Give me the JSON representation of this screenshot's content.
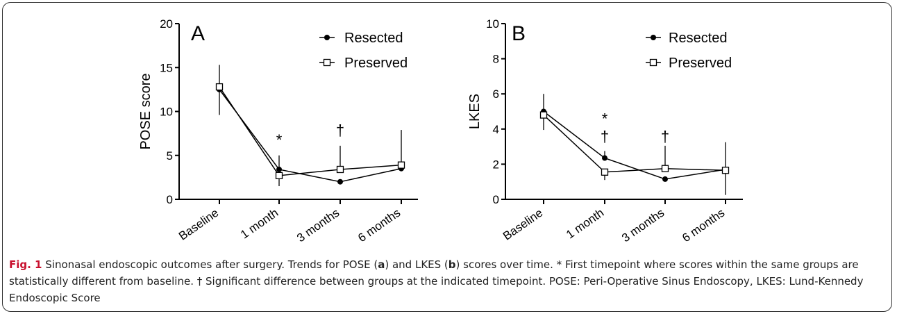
{
  "chart_data": [
    {
      "type": "line",
      "panel_letter": "A",
      "ylabel": "POSE score",
      "categories": [
        "Baseline",
        "1 month",
        "3 months",
        "6 months"
      ],
      "ylim": [
        0,
        20
      ],
      "yticks": [
        0,
        5,
        10,
        15,
        20
      ],
      "legend_position": "top-right",
      "series": [
        {
          "name": "Resected",
          "marker": "filled-circle",
          "values": [
            12.5,
            3.4,
            2.0,
            3.5
          ],
          "error_up": [
            null,
            1.6,
            null,
            null
          ]
        },
        {
          "name": "Preserved",
          "marker": "open-square",
          "values": [
            12.8,
            2.7,
            3.4,
            3.9
          ],
          "error_up": [
            2.5,
            null,
            2.7,
            4.0
          ]
        }
      ],
      "error_down": [
        {
          "category": "Baseline",
          "value": 9.6
        },
        {
          "category": "1 month",
          "value": 1.5
        }
      ],
      "annotations": [
        {
          "category": "1 month",
          "text": "*",
          "y": 6.8
        },
        {
          "category": "3 months",
          "text": "†",
          "y": 7.9
        }
      ]
    },
    {
      "type": "line",
      "panel_letter": "B",
      "ylabel": "LKES",
      "categories": [
        "Baseline",
        "1 month",
        "3 months",
        "6 months"
      ],
      "ylim": [
        0,
        10
      ],
      "yticks": [
        0,
        2,
        4,
        6,
        8,
        10
      ],
      "legend_position": "top-right",
      "series": [
        {
          "name": "Resected",
          "marker": "filled-circle",
          "values": [
            5.0,
            2.35,
            1.15,
            1.7
          ],
          "error_up": [
            1.0,
            0.4,
            null,
            1.55
          ]
        },
        {
          "name": "Preserved",
          "marker": "open-square",
          "values": [
            4.8,
            1.55,
            1.75,
            1.65
          ],
          "error_up": [
            null,
            null,
            1.3,
            null
          ]
        }
      ],
      "error_down": [
        {
          "category": "Baseline",
          "value": 3.95
        },
        {
          "category": "1 month",
          "value": 1.1
        },
        {
          "category": "6 months",
          "value": 0.25
        }
      ],
      "annotations": [
        {
          "category": "1 month",
          "text": "*",
          "y": 4.6
        },
        {
          "category": "1 month",
          "text": "†",
          "y": 3.6
        },
        {
          "category": "3 months",
          "text": "†",
          "y": 3.6
        }
      ]
    }
  ],
  "caption": {
    "fig_label": "Fig. 1",
    "text_1": " Sinonasal endoscopic outcomes after surgery. Trends for POSE (",
    "a": "a",
    "text_2": ") and LKES (",
    "b": "b",
    "text_3": ") scores over time. * First timepoint where scores within the same groups are statistically different from baseline. † Significant difference between groups at the indicated timepoint. POSE: Peri-Operative Sinus Endoscopy, LKES: Lund-Kennedy Endoscopic Score"
  }
}
